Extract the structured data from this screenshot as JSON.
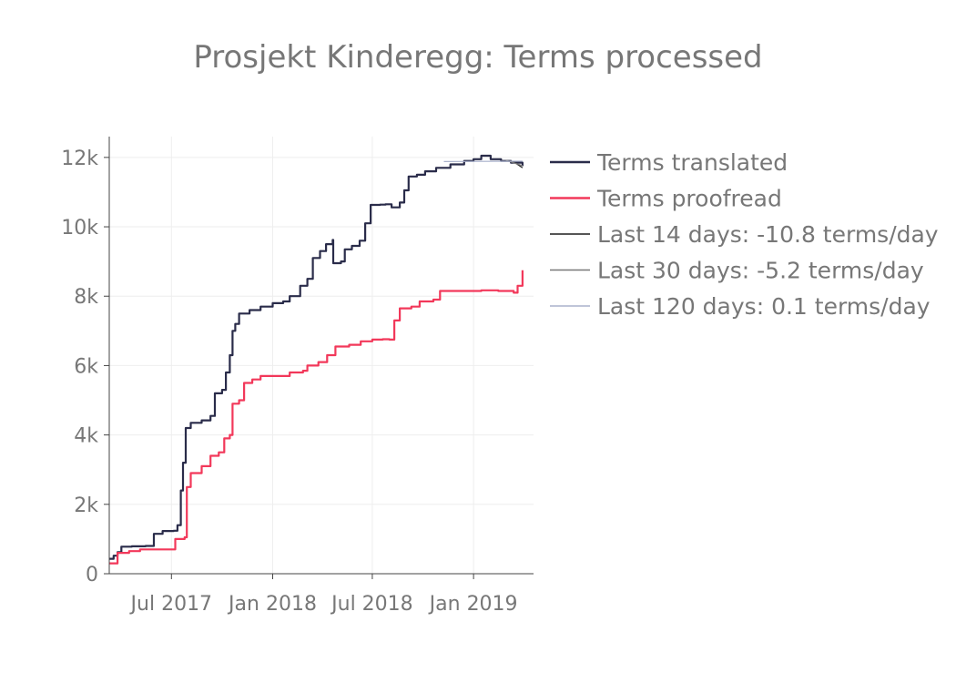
{
  "chart_data": {
    "type": "line",
    "title": "Prosjekt Kinderegg: Terms processed",
    "xlabel": "",
    "ylabel": "",
    "xlim": [
      "2017-03-10",
      "2019-04-20"
    ],
    "ylim": [
      0,
      12600
    ],
    "grid": true,
    "legend_position": "right",
    "x_ticks": [
      {
        "date": "2017-07-01",
        "label": "Jul 2017"
      },
      {
        "date": "2018-01-01",
        "label": "Jan 2018"
      },
      {
        "date": "2018-07-01",
        "label": "Jul 2018"
      },
      {
        "date": "2019-01-01",
        "label": "Jan 2019"
      }
    ],
    "y_ticks": [
      {
        "value": 0,
        "label": "0"
      },
      {
        "value": 2000,
        "label": "2k"
      },
      {
        "value": 4000,
        "label": "4k"
      },
      {
        "value": 6000,
        "label": "6k"
      },
      {
        "value": 8000,
        "label": "8k"
      },
      {
        "value": 10000,
        "label": "10k"
      },
      {
        "value": 12000,
        "label": "12k"
      }
    ],
    "series": [
      {
        "name": "Terms translated",
        "color": "#2a2c4a",
        "width": 2.2,
        "points": [
          [
            "2017-03-10",
            430
          ],
          [
            "2017-03-18",
            520
          ],
          [
            "2017-03-25",
            620
          ],
          [
            "2017-04-01",
            780
          ],
          [
            "2017-04-20",
            790
          ],
          [
            "2017-05-15",
            800
          ],
          [
            "2017-05-30",
            1150
          ],
          [
            "2017-06-15",
            1230
          ],
          [
            "2017-07-05",
            1240
          ],
          [
            "2017-07-12",
            1400
          ],
          [
            "2017-07-18",
            2400
          ],
          [
            "2017-07-22",
            3200
          ],
          [
            "2017-07-27",
            4200
          ],
          [
            "2017-08-05",
            4350
          ],
          [
            "2017-08-25",
            4420
          ],
          [
            "2017-09-10",
            4550
          ],
          [
            "2017-09-18",
            5200
          ],
          [
            "2017-10-01",
            5300
          ],
          [
            "2017-10-08",
            5800
          ],
          [
            "2017-10-15",
            6300
          ],
          [
            "2017-10-20",
            7000
          ],
          [
            "2017-10-25",
            7200
          ],
          [
            "2017-11-01",
            7500
          ],
          [
            "2017-11-20",
            7600
          ],
          [
            "2017-12-10",
            7700
          ],
          [
            "2018-01-01",
            7800
          ],
          [
            "2018-01-20",
            7850
          ],
          [
            "2018-02-01",
            8000
          ],
          [
            "2018-02-20",
            8300
          ],
          [
            "2018-03-05",
            8500
          ],
          [
            "2018-03-15",
            9100
          ],
          [
            "2018-03-28",
            9300
          ],
          [
            "2018-04-08",
            9500
          ],
          [
            "2018-04-20",
            9620
          ],
          [
            "2018-04-21",
            8950
          ],
          [
            "2018-05-05",
            9000
          ],
          [
            "2018-05-12",
            9350
          ],
          [
            "2018-05-25",
            9450
          ],
          [
            "2018-06-08",
            9600
          ],
          [
            "2018-06-18",
            10100
          ],
          [
            "2018-06-28",
            10630
          ],
          [
            "2018-07-15",
            10640
          ],
          [
            "2018-07-25",
            10650
          ],
          [
            "2018-08-05",
            10560
          ],
          [
            "2018-08-20",
            10700
          ],
          [
            "2018-08-28",
            11050
          ],
          [
            "2018-09-05",
            11450
          ],
          [
            "2018-09-20",
            11500
          ],
          [
            "2018-10-05",
            11600
          ],
          [
            "2018-10-25",
            11700
          ],
          [
            "2018-11-20",
            11800
          ],
          [
            "2018-12-15",
            11900
          ],
          [
            "2019-01-01",
            11950
          ],
          [
            "2019-01-15",
            12050
          ],
          [
            "2019-02-01",
            11950
          ],
          [
            "2019-02-20",
            11900
          ],
          [
            "2019-03-10",
            11850
          ],
          [
            "2019-03-31",
            11750
          ]
        ]
      },
      {
        "name": "Terms proofread",
        "color": "#f2385a",
        "width": 2.2,
        "points": [
          [
            "2017-03-10",
            300
          ],
          [
            "2017-03-25",
            600
          ],
          [
            "2017-04-15",
            650
          ],
          [
            "2017-05-05",
            700
          ],
          [
            "2017-06-01",
            700
          ],
          [
            "2017-07-01",
            700
          ],
          [
            "2017-07-08",
            1000
          ],
          [
            "2017-07-25",
            1050
          ],
          [
            "2017-07-29",
            2500
          ],
          [
            "2017-08-05",
            2900
          ],
          [
            "2017-08-25",
            3100
          ],
          [
            "2017-09-10",
            3400
          ],
          [
            "2017-09-25",
            3500
          ],
          [
            "2017-10-05",
            3900
          ],
          [
            "2017-10-15",
            4000
          ],
          [
            "2017-10-20",
            4900
          ],
          [
            "2017-11-01",
            5000
          ],
          [
            "2017-11-10",
            5500
          ],
          [
            "2017-11-25",
            5600
          ],
          [
            "2017-12-10",
            5700
          ],
          [
            "2018-01-15",
            5700
          ],
          [
            "2018-02-01",
            5800
          ],
          [
            "2018-02-25",
            5850
          ],
          [
            "2018-03-05",
            6000
          ],
          [
            "2018-03-25",
            6100
          ],
          [
            "2018-04-10",
            6300
          ],
          [
            "2018-04-25",
            6550
          ],
          [
            "2018-05-20",
            6600
          ],
          [
            "2018-06-10",
            6700
          ],
          [
            "2018-07-01",
            6750
          ],
          [
            "2018-07-20",
            6760
          ],
          [
            "2018-08-01",
            6750
          ],
          [
            "2018-08-10",
            7300
          ],
          [
            "2018-08-20",
            7650
          ],
          [
            "2018-09-10",
            7700
          ],
          [
            "2018-09-25",
            7850
          ],
          [
            "2018-10-20",
            7900
          ],
          [
            "2018-11-01",
            8150
          ],
          [
            "2018-12-15",
            8150
          ],
          [
            "2019-01-15",
            8170
          ],
          [
            "2019-02-15",
            8150
          ],
          [
            "2019-03-15",
            8100
          ],
          [
            "2019-03-22",
            8300
          ],
          [
            "2019-03-31",
            8750
          ]
        ]
      },
      {
        "name": "Last 14 days: -10.8 terms/day",
        "color": "#1f1f1f",
        "width": 1.2,
        "points": [
          [
            "2019-03-17",
            11850
          ],
          [
            "2019-03-31",
            11700
          ]
        ]
      },
      {
        "name": "Last 30 days: -5.2 terms/day",
        "color": "#777777",
        "width": 1.2,
        "points": [
          [
            "2019-03-01",
            11920
          ],
          [
            "2019-03-31",
            11760
          ]
        ]
      },
      {
        "name": "Last 120 days: 0.1 terms/day",
        "color": "#aab2cc",
        "width": 1.2,
        "points": [
          [
            "2018-11-08",
            11880
          ],
          [
            "2019-03-31",
            11890
          ]
        ]
      }
    ]
  }
}
